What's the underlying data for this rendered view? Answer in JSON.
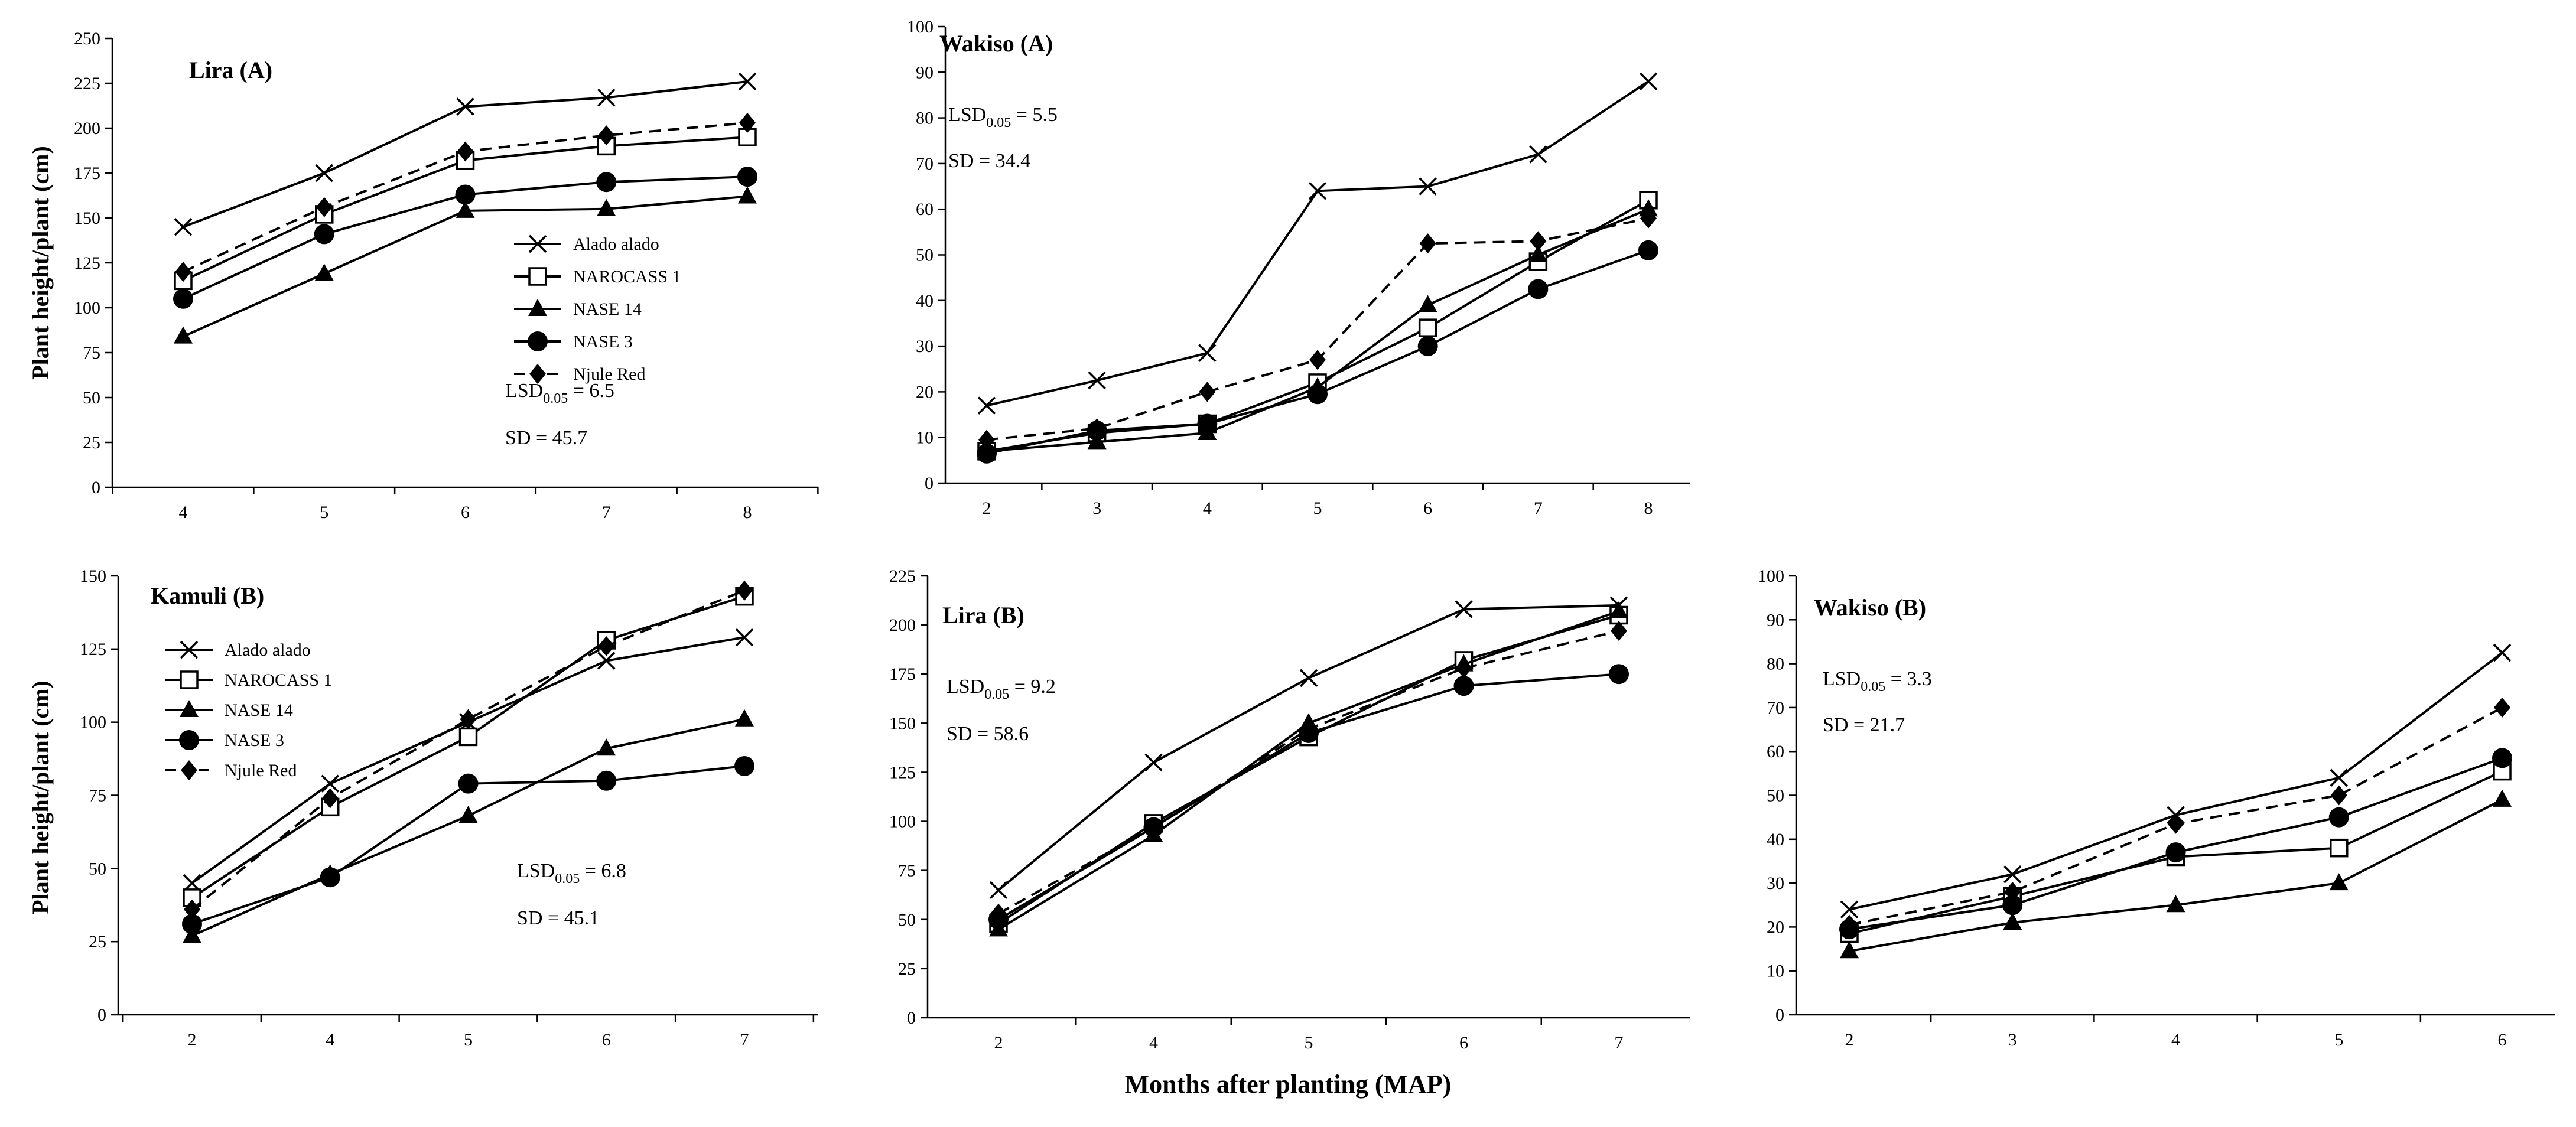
{
  "figure": {
    "xlabel": "Months after planting (MAP)"
  },
  "series_styles": [
    {
      "name": "Alado alado",
      "marker": "x",
      "dash": false,
      "color": "#000000"
    },
    {
      "name": "NAROCASS 1",
      "marker": "square-open",
      "dash": false,
      "color": "#000000"
    },
    {
      "name": "NASE 14",
      "marker": "triangle",
      "dash": false,
      "color": "#000000"
    },
    {
      "name": "NASE 3",
      "marker": "circle",
      "dash": false,
      "color": "#000000"
    },
    {
      "name": "Njule Red",
      "marker": "diamond",
      "dash": true,
      "color": "#000000"
    }
  ],
  "chart_data": [
    {
      "id": "lira_a",
      "type": "line",
      "title": "Lira (A)",
      "ylabel": "Plant height/plant (cm)",
      "lsd_prefix": "LSD",
      "lsd_sub": "0.05",
      "lsd_value": " = 6.5",
      "sd_text": "SD = 45.7",
      "legend": true,
      "x": [
        "4",
        "5",
        "6",
        "7",
        "8"
      ],
      "ylim": [
        0,
        250
      ],
      "yticks": [
        "0",
        "25",
        "50",
        "75",
        "100",
        "125",
        "150",
        "175",
        "200",
        "225",
        "250"
      ],
      "series": [
        {
          "name": "Alado alado",
          "values": [
            145,
            175,
            212,
            217,
            226
          ]
        },
        {
          "name": "NAROCASS 1",
          "values": [
            115,
            152,
            182,
            190,
            195
          ]
        },
        {
          "name": "NASE 14",
          "values": [
            84,
            119,
            154,
            155,
            162
          ]
        },
        {
          "name": "NASE 3",
          "values": [
            105,
            141,
            163,
            170,
            173
          ]
        },
        {
          "name": "Njule Red",
          "values": [
            120,
            156,
            187,
            196,
            203
          ]
        }
      ]
    },
    {
      "id": "wakiso_a",
      "type": "line",
      "title": "Wakiso (A)",
      "ylabel": "",
      "lsd_prefix": "LSD",
      "lsd_sub": "0.05",
      "lsd_value": " = 5.5",
      "sd_text": "SD = 34.4",
      "legend": false,
      "x": [
        "2",
        "3",
        "4",
        "5",
        "6",
        "7",
        "8"
      ],
      "ylim": [
        0,
        100
      ],
      "yticks": [
        "0",
        "10",
        "20",
        "30",
        "40",
        "50",
        "60",
        "70",
        "80",
        "90",
        "100"
      ],
      "series": [
        {
          "name": "Alado alado",
          "values": [
            17,
            22.5,
            28.5,
            64,
            65,
            72,
            88
          ]
        },
        {
          "name": "NAROCASS 1",
          "values": [
            7,
            11,
            13,
            22,
            34,
            48.5,
            62
          ]
        },
        {
          "name": "NASE 14",
          "values": [
            7,
            9,
            11,
            21,
            39,
            50,
            60
          ]
        },
        {
          "name": "NASE 3",
          "values": [
            6.5,
            11.5,
            13,
            19.5,
            30,
            42.5,
            51
          ]
        },
        {
          "name": "Njule Red",
          "values": [
            9.5,
            12,
            20,
            27,
            52.5,
            53,
            58
          ]
        }
      ]
    },
    {
      "id": "kamuli_b",
      "type": "line",
      "title": "Kamuli (B)",
      "ylabel": "Plant height/plant (cm)",
      "lsd_prefix": "LSD",
      "lsd_sub": "0.05",
      "lsd_value": " = 6.8",
      "sd_text": "SD = 45.1",
      "legend": true,
      "x": [
        "2",
        "4",
        "5",
        "6",
        "7"
      ],
      "ylim": [
        0,
        150
      ],
      "yticks": [
        "0",
        "25",
        "50",
        "75",
        "100",
        "125",
        "150"
      ],
      "series": [
        {
          "name": "Alado alado",
          "values": [
            45,
            79,
            100,
            121,
            129
          ]
        },
        {
          "name": "NAROCASS 1",
          "values": [
            40,
            71,
            95,
            128,
            143
          ]
        },
        {
          "name": "NASE 14",
          "values": [
            27,
            48,
            68,
            91,
            101
          ]
        },
        {
          "name": "NASE 3",
          "values": [
            31,
            47,
            79,
            80,
            85
          ]
        },
        {
          "name": "Njule Red",
          "values": [
            36,
            74,
            101,
            126,
            145
          ]
        }
      ]
    },
    {
      "id": "lira_b",
      "type": "line",
      "title": "Lira (B)",
      "ylabel": "",
      "lsd_prefix": "LSD",
      "lsd_sub": "0.05",
      "lsd_value": " = 9.2",
      "sd_text": "SD = 58.6",
      "legend": false,
      "x": [
        "2",
        "4",
        "5",
        "6",
        "7"
      ],
      "ylim": [
        0,
        225
      ],
      "yticks": [
        "0",
        "25",
        "50",
        "75",
        "100",
        "125",
        "150",
        "175",
        "200",
        "225"
      ],
      "series": [
        {
          "name": "Alado alado",
          "values": [
            65,
            130,
            173,
            208,
            210
          ]
        },
        {
          "name": "NAROCASS 1",
          "values": [
            48,
            99,
            143,
            182,
            205
          ]
        },
        {
          "name": "NASE 14",
          "values": [
            45,
            93,
            150,
            180,
            207
          ]
        },
        {
          "name": "NASE 3",
          "values": [
            50,
            97,
            145,
            169,
            175
          ]
        },
        {
          "name": "Njule Red",
          "values": [
            53,
            97,
            147,
            178,
            197
          ]
        }
      ]
    },
    {
      "id": "wakiso_b",
      "type": "line",
      "title": "Wakiso (B)",
      "ylabel": "",
      "lsd_prefix": "LSD",
      "lsd_sub": "0.05",
      "lsd_value": " = 3.3",
      "sd_text": "SD = 21.7",
      "legend": false,
      "x": [
        "2",
        "3",
        "4",
        "5",
        "6"
      ],
      "ylim": [
        0,
        100
      ],
      "yticks": [
        "0",
        "10",
        "20",
        "30",
        "40",
        "50",
        "60",
        "70",
        "80",
        "90",
        "100"
      ],
      "series": [
        {
          "name": "Alado alado",
          "values": [
            24,
            32,
            45.5,
            54,
            82.5
          ]
        },
        {
          "name": "NAROCASS 1",
          "values": [
            18.5,
            27,
            36,
            38,
            55.5
          ]
        },
        {
          "name": "NASE 14",
          "values": [
            14.5,
            21,
            25,
            30,
            49
          ]
        },
        {
          "name": "NASE 3",
          "values": [
            19.5,
            25,
            37,
            45,
            58.5
          ]
        },
        {
          "name": "Njule Red",
          "values": [
            20.5,
            28,
            43.5,
            50,
            70
          ]
        }
      ]
    }
  ]
}
